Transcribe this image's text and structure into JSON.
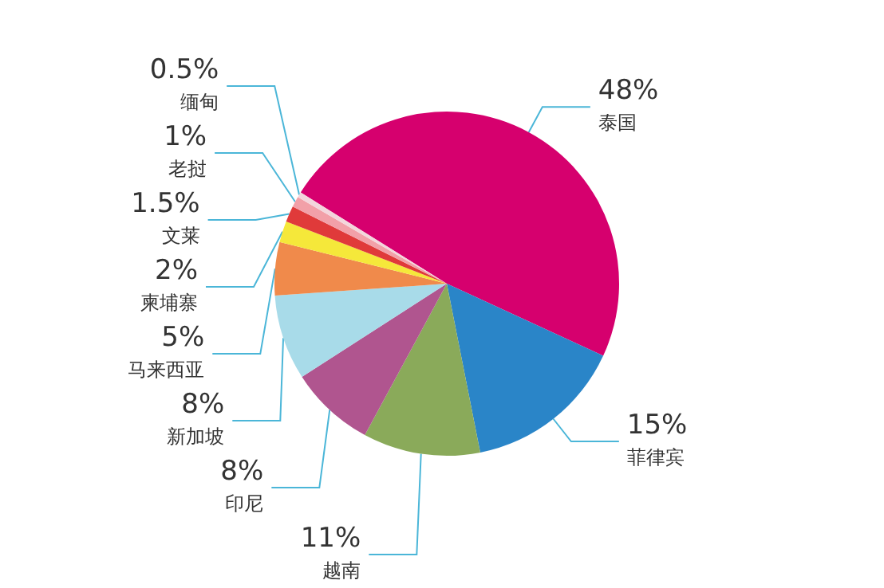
{
  "chart_data": {
    "type": "pie",
    "categories": [
      "泰国",
      "菲律宾",
      "越南",
      "印尼",
      "新加坡",
      "马来西亚",
      "柬埔寨",
      "文莱",
      "老挝",
      "缅甸"
    ],
    "values": [
      48,
      15,
      11,
      8,
      8,
      5,
      2,
      1.5,
      1,
      0.5
    ],
    "value_labels": [
      "48%",
      "15%",
      "11%",
      "8%",
      "8%",
      "5%",
      "2%",
      "1.5%",
      "1%",
      "0.5%"
    ],
    "colors": [
      "#d6006e",
      "#2a85c8",
      "#8aaa5a",
      "#b0558f",
      "#a8dbe9",
      "#f08a4b",
      "#f5e83a",
      "#e03a3a",
      "#f2a0a8",
      "#f3d6dc"
    ],
    "legend": false
  }
}
